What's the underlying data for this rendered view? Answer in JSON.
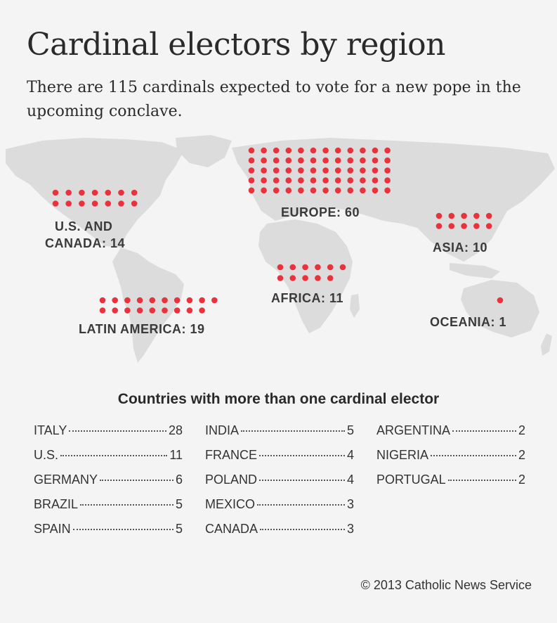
{
  "title": "Cardinal electors by region",
  "subtitle": "There are 115 cardinals expected to vote for a new pope in the upcoming conclave.",
  "colors": {
    "dot": "#e8323c",
    "land": "#dcdcdc",
    "background": "#f4f4f4"
  },
  "chart_data": [
    {
      "type": "dot-map",
      "title": "Cardinal electors by region",
      "regions": [
        {
          "name": "U.S. AND CANADA",
          "label_line1": "U.S. AND",
          "label_line2": "CANADA: 14",
          "value": 14
        },
        {
          "name": "LATIN AMERICA",
          "label": "LATIN AMERICA: 19",
          "value": 19
        },
        {
          "name": "EUROPE",
          "label": "EUROPE: 60",
          "value": 60
        },
        {
          "name": "AFRICA",
          "label": "AFRICA: 11",
          "value": 11
        },
        {
          "name": "ASIA",
          "label": "ASIA: 10",
          "value": 10
        },
        {
          "name": "OCEANIA",
          "label": "OCEANIA: 1",
          "value": 1
        }
      ]
    },
    {
      "type": "table",
      "title": "Countries with more than one cardinal elector",
      "columns": [
        [
          {
            "country": "ITALY",
            "count": "28"
          },
          {
            "country": "U.S.",
            "count": "11"
          },
          {
            "country": "GERMANY",
            "count": "6"
          },
          {
            "country": "BRAZIL",
            "count": "5"
          },
          {
            "country": "SPAIN",
            "count": "5"
          }
        ],
        [
          {
            "country": "INDIA",
            "count": "5"
          },
          {
            "country": "FRANCE",
            "count": "4"
          },
          {
            "country": "POLAND",
            "count": "4"
          },
          {
            "country": "MEXICO",
            "count": "3"
          },
          {
            "country": "CANADA",
            "count": "3"
          }
        ],
        [
          {
            "country": "ARGENTINA",
            "count": "2"
          },
          {
            "country": "NIGERIA",
            "count": "2"
          },
          {
            "country": "PORTUGAL",
            "count": "2"
          }
        ]
      ]
    }
  ],
  "credit": "© 2013 Catholic News Service"
}
